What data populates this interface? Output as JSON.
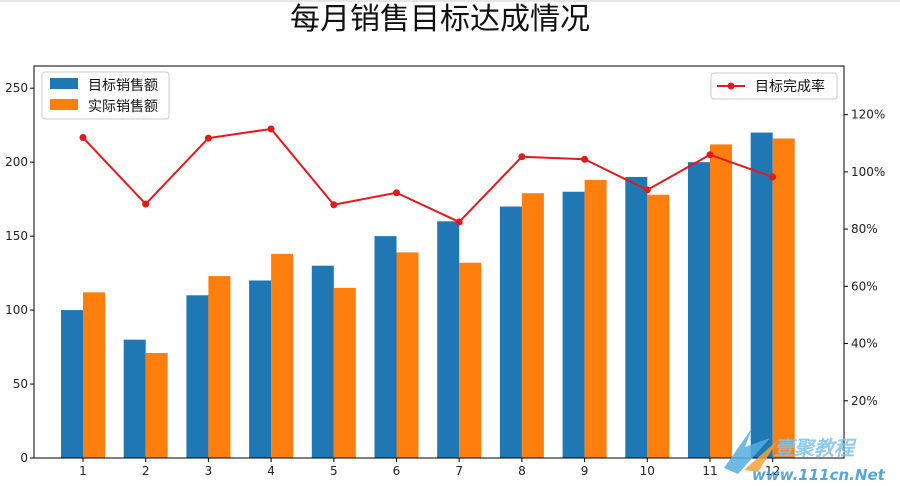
{
  "chart_data": {
    "type": "bar",
    "title": "每月销售目标达成情况",
    "categories": [
      "1",
      "2",
      "3",
      "4",
      "5",
      "6",
      "7",
      "8",
      "9",
      "10",
      "11",
      "12"
    ],
    "series": [
      {
        "name": "目标销售额",
        "color": "#1f77b4",
        "values": [
          100,
          80,
          110,
          120,
          130,
          150,
          160,
          170,
          180,
          190,
          200,
          220
        ]
      },
      {
        "name": "实际销售额",
        "color": "#ff7f0e",
        "values": [
          112,
          71,
          123,
          138,
          115,
          139,
          132,
          179,
          188,
          178,
          212,
          216
        ]
      }
    ],
    "line_series": {
      "name": "目标完成率",
      "color": "#e31a1c",
      "axis": "right",
      "values": [
        1.12,
        0.8875,
        1.118,
        1.15,
        0.885,
        0.927,
        0.825,
        1.053,
        1.044,
        0.937,
        1.06,
        0.982
      ]
    },
    "y_left": {
      "ticks": [
        0,
        50,
        100,
        150,
        200,
        250
      ],
      "ylim": [
        0,
        265
      ]
    },
    "y_right": {
      "tick_values": [
        0.2,
        0.4,
        0.6,
        0.8,
        1.0,
        1.2
      ],
      "tick_labels": [
        "20%",
        "40%",
        "60%",
        "80%",
        "100%",
        "120%"
      ],
      "ylim": [
        0,
        1.37
      ]
    },
    "legend_bars": "top-left",
    "legend_line": "top-right",
    "grid": false
  },
  "watermark": {
    "line1": "壹聚教程",
    "line2": "www.111cn.Net"
  }
}
